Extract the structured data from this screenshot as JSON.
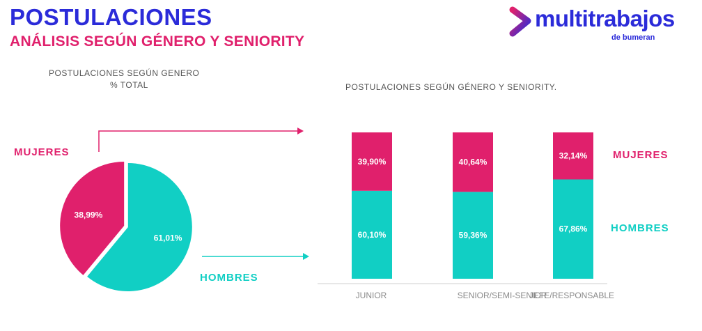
{
  "header": {
    "title": "POSTULACIONES",
    "subtitle": "ANÁLISIS SEGÚN GÉNERO Y SENIORITY"
  },
  "logo": {
    "name": "multitrabajos",
    "sub": "de bumeran",
    "color": "#2b2bd9"
  },
  "colors": {
    "mujeres": "#e0206c",
    "hombres": "#11cfc4"
  },
  "labels": {
    "mujeres": "MUJERES",
    "hombres": "HOMBRES"
  },
  "chart_data": [
    {
      "type": "pie",
      "title_line1": "POSTULACIONES SEGÚN GENERO",
      "title_line2": "% TOTAL",
      "slices": [
        {
          "name": "MUJERES",
          "value": 38.99,
          "label": "38,99%"
        },
        {
          "name": "HOMBRES",
          "value": 61.01,
          "label": "61,01%"
        }
      ]
    },
    {
      "type": "bar",
      "stacked": true,
      "title": "POSTULACIONES SEGÚN GÉNERO Y SENIORITY.",
      "categories": [
        "JUNIOR",
        "SENIOR/SEMI-SENIOR",
        "JEFE/RESPONSABLE"
      ],
      "series": [
        {
          "name": "HOMBRES",
          "values": [
            60.1,
            59.36,
            67.86
          ],
          "labels": [
            "60,10%",
            "59,36%",
            "67,86%"
          ]
        },
        {
          "name": "MUJERES",
          "values": [
            39.9,
            40.64,
            32.14
          ],
          "labels": [
            "39,90%",
            "40,64%",
            "32,14%"
          ]
        }
      ],
      "ylim": [
        0,
        100
      ]
    }
  ]
}
